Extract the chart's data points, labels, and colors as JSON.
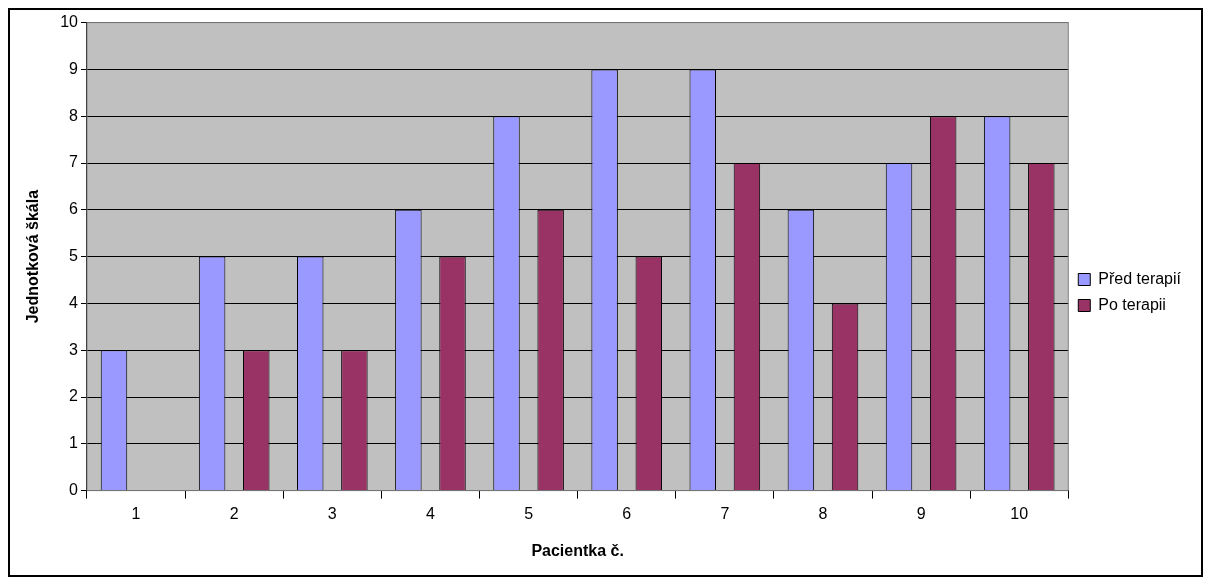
{
  "chart_data": {
    "type": "bar",
    "xlabel": "Pacientka č.",
    "ylabel": "Jednotková škála",
    "categories": [
      "1",
      "2",
      "3",
      "4",
      "5",
      "6",
      "7",
      "8",
      "9",
      "10"
    ],
    "series": [
      {
        "name": "Před terapií",
        "color": "#9999ff",
        "values": [
          3,
          5,
          5,
          6,
          8,
          9,
          9,
          6,
          7,
          8
        ]
      },
      {
        "name": "Po terapii",
        "color": "#993366",
        "values": [
          0,
          3,
          3,
          5,
          6,
          5,
          7,
          4,
          8,
          7
        ]
      }
    ],
    "ylim": [
      0,
      10
    ],
    "yticks": [
      0,
      1,
      2,
      3,
      4,
      5,
      6,
      7,
      8,
      9,
      10
    ],
    "grid": "y",
    "legend": "right"
  }
}
